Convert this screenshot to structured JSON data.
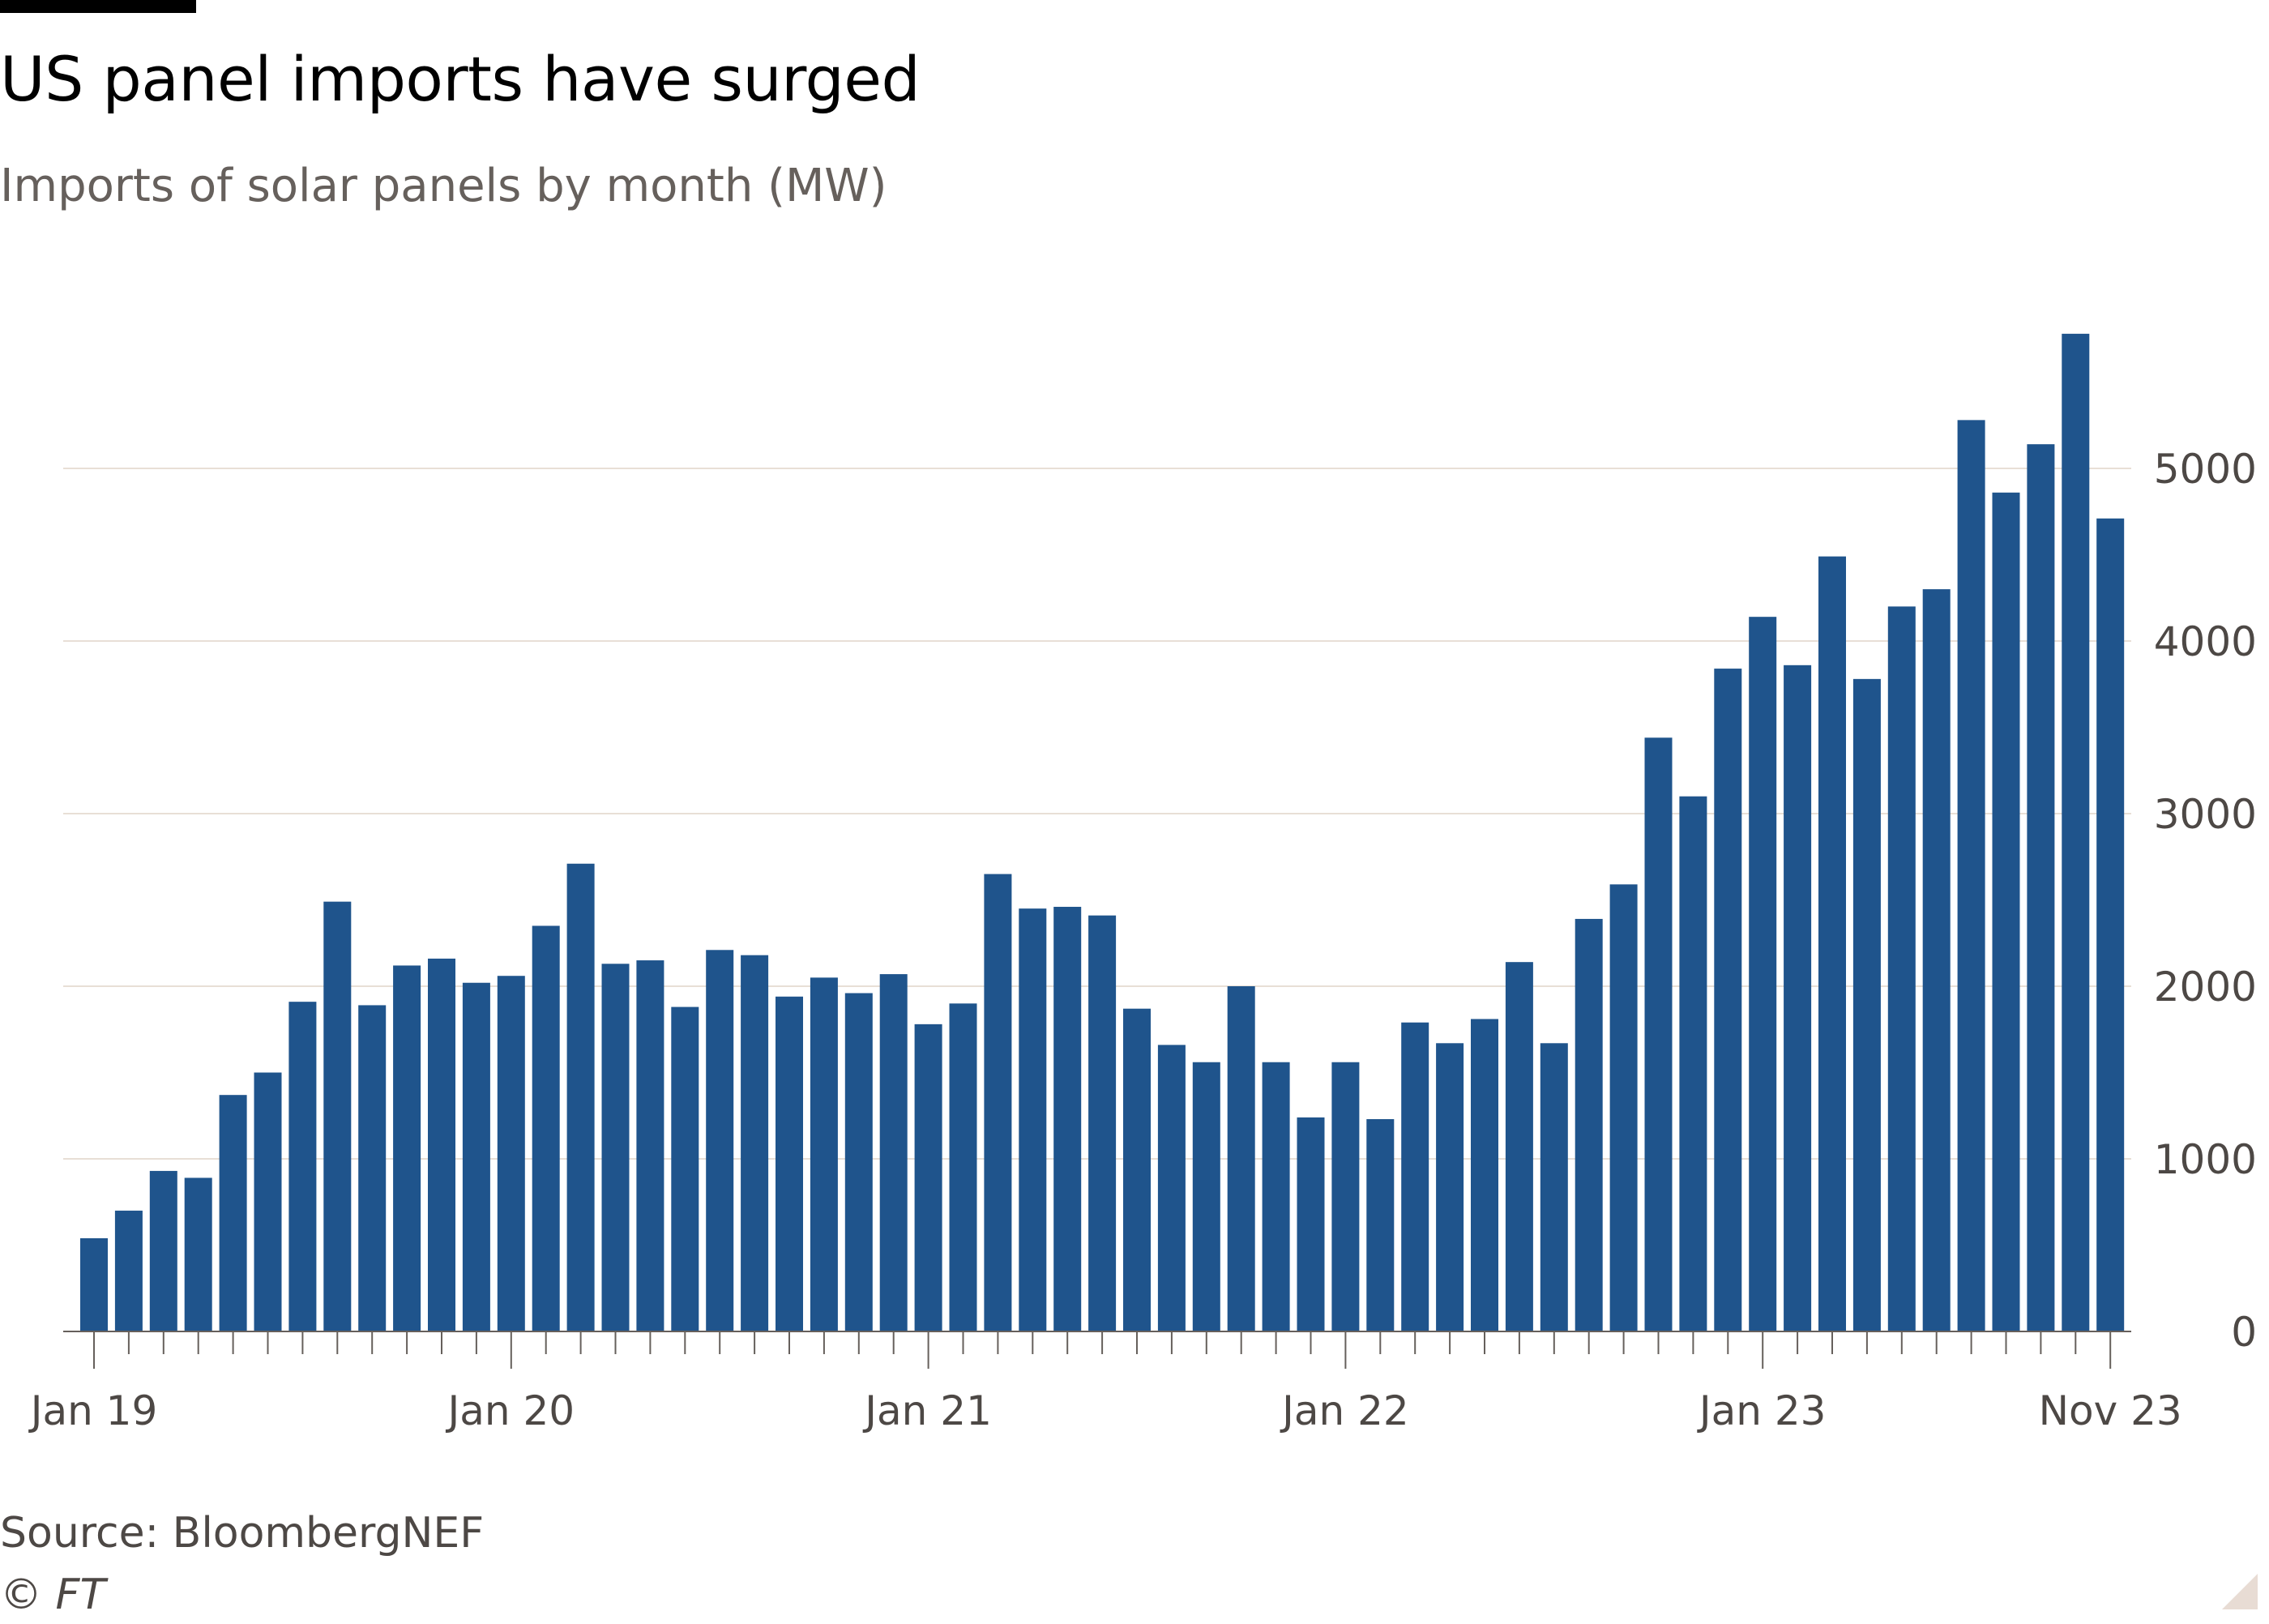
{
  "header": {
    "title": "US panel imports have surged",
    "subtitle": "Imports of solar panels by month (MW)"
  },
  "footer": {
    "source": "Source: BloombergNEF",
    "copyright": "© FT"
  },
  "colors": {
    "bar": "#1f548c",
    "grid": "#e8dfd6",
    "axis": "#66605c",
    "tick_text": "#4d4845"
  },
  "chart_data": {
    "type": "bar",
    "title": "US panel imports have surged",
    "subtitle": "Imports of solar panels by month (MW)",
    "source": "BloombergNEF",
    "xlabel": "",
    "ylabel": "",
    "ylim": [
      0,
      5800
    ],
    "y_ticks": [
      0,
      1000,
      2000,
      3000,
      4000,
      5000
    ],
    "y_tick_labels": [
      "0",
      "1000",
      "2000",
      "3000",
      "4000",
      "5000"
    ],
    "y_axis_side": "right",
    "grid": true,
    "x_tick_labels": [
      {
        "index": 0,
        "label": "Jan 19"
      },
      {
        "index": 12,
        "label": "Jan 20"
      },
      {
        "index": 24,
        "label": "Jan 21"
      },
      {
        "index": 36,
        "label": "Jan 22"
      },
      {
        "index": 48,
        "label": "Jan 23"
      },
      {
        "index": 58,
        "label": "Nov 23"
      }
    ],
    "categories": [
      "Jan 19",
      "Feb 19",
      "Mar 19",
      "Apr 19",
      "May 19",
      "Jun 19",
      "Jul 19",
      "Aug 19",
      "Sep 19",
      "Oct 19",
      "Nov 19",
      "Dec 19",
      "Jan 20",
      "Feb 20",
      "Mar 20",
      "Apr 20",
      "May 20",
      "Jun 20",
      "Jul 20",
      "Aug 20",
      "Sep 20",
      "Oct 20",
      "Nov 20",
      "Dec 20",
      "Jan 21",
      "Feb 21",
      "Mar 21",
      "Apr 21",
      "May 21",
      "Jun 21",
      "Jul 21",
      "Aug 21",
      "Sep 21",
      "Oct 21",
      "Nov 21",
      "Dec 21",
      "Jan 22",
      "Feb 22",
      "Mar 22",
      "Apr 22",
      "May 22",
      "Jun 22",
      "Jul 22",
      "Aug 22",
      "Sep 22",
      "Oct 22",
      "Nov 22",
      "Dec 22",
      "Jan 23",
      "Feb 23",
      "Mar 23",
      "Apr 23",
      "May 23",
      "Jun 23",
      "Jul 23",
      "Aug 23",
      "Sep 23",
      "Oct 23",
      "Nov 23"
    ],
    "values": [
      540,
      700,
      930,
      890,
      1370,
      1500,
      1910,
      2490,
      1890,
      2120,
      2160,
      2020,
      2060,
      2350,
      2710,
      2130,
      2150,
      1880,
      2210,
      2180,
      1940,
      2050,
      1960,
      2070,
      1780,
      1900,
      2650,
      2450,
      2460,
      2410,
      1870,
      1660,
      1560,
      2000,
      1560,
      1240,
      1560,
      1230,
      1790,
      1670,
      1810,
      2140,
      1670,
      2390,
      2590,
      3440,
      3100,
      3840,
      4140,
      3860,
      4490,
      3780,
      4200,
      4300,
      5280,
      4860,
      5140,
      5780,
      4710
    ]
  }
}
